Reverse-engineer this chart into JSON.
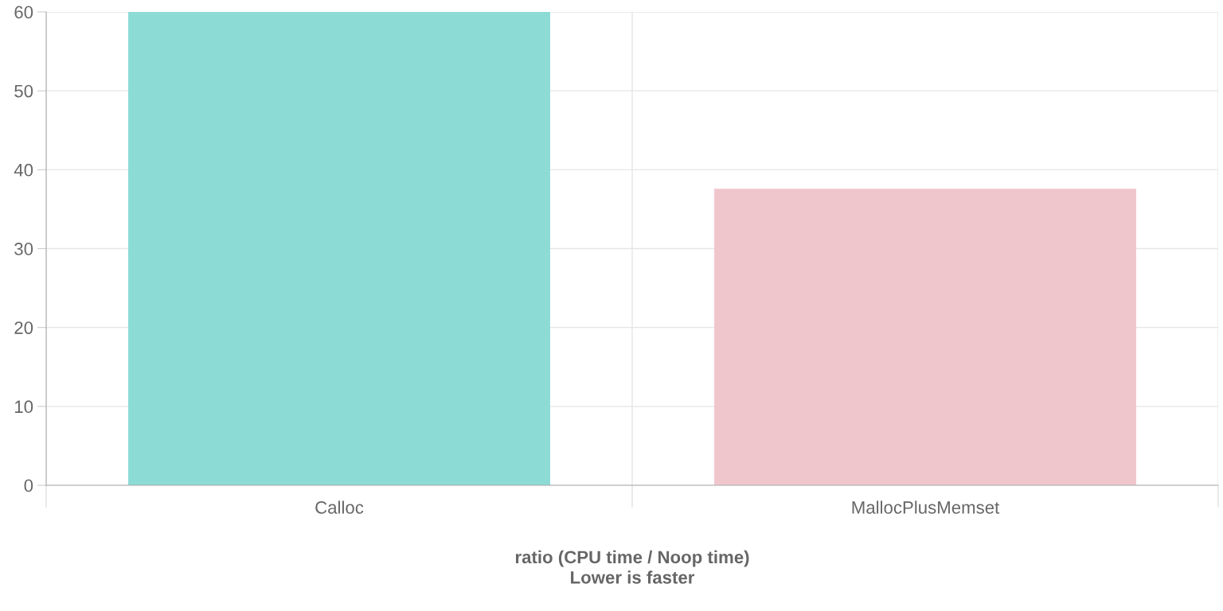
{
  "chart_data": {
    "type": "bar",
    "xlabel": "ratio (CPU time / Noop time)\nLower is faster",
    "categories": [
      "Calloc",
      "MallocPlusMemset"
    ],
    "values": [
      60,
      37.6
    ],
    "colors": [
      "#8cdbd5",
      "#f0c6cd"
    ],
    "ylim": [
      0,
      60
    ],
    "yticks": [
      0,
      10,
      20,
      30,
      40,
      50,
      60
    ],
    "grid": true,
    "legend": false
  }
}
